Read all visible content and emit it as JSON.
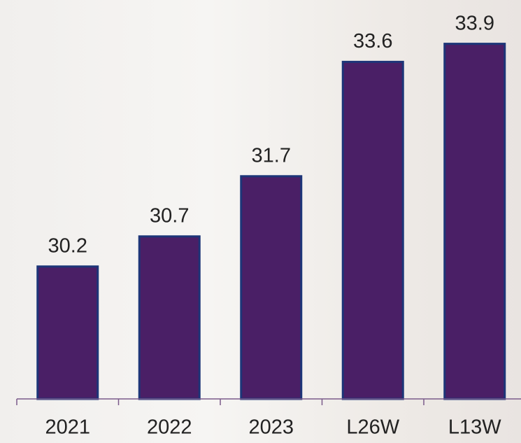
{
  "chart_data": {
    "type": "bar",
    "categories": [
      "2021",
      "2022",
      "2023",
      "L26W",
      "L13W"
    ],
    "values": [
      30.2,
      30.7,
      31.7,
      33.6,
      33.9
    ],
    "color": "#4a1f66",
    "ylim": [
      28,
      34
    ]
  }
}
